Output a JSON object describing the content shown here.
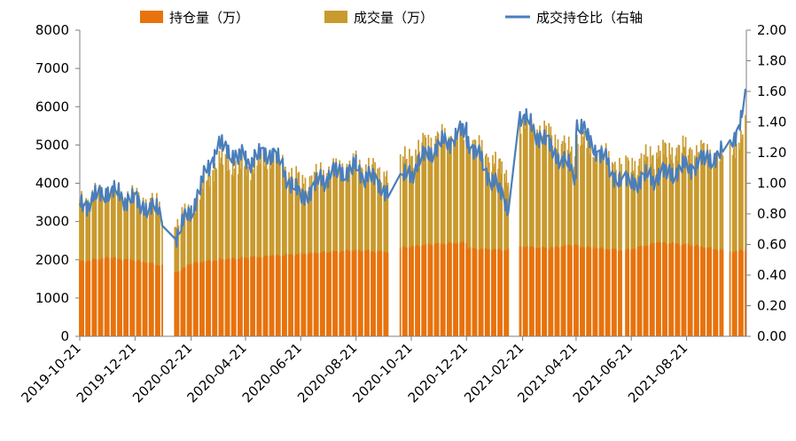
{
  "chart_data": {
    "type": "bar",
    "legend": {
      "position": "top",
      "items": [
        {
          "label": "持仓量（万）",
          "color": "#e8730d",
          "kind": "bar"
        },
        {
          "label": "成交量（万）",
          "color": "#c99a2e",
          "kind": "bar"
        },
        {
          "label": "成交持仓比（右轴",
          "color": "#4a7ebb",
          "kind": "line"
        }
      ]
    },
    "y_left": {
      "min": 0,
      "max": 8000,
      "ticks": [
        "0",
        "1000",
        "2000",
        "3000",
        "4000",
        "5000",
        "6000",
        "7000",
        "8000"
      ]
    },
    "y_right": {
      "min": 0,
      "max": 2,
      "ticks": [
        "0.00",
        "0.20",
        "0.40",
        "0.60",
        "0.80",
        "1.00",
        "1.20",
        "1.40",
        "1.60",
        "1.80",
        "2.00"
      ]
    },
    "x_ticks": [
      "2019-10-21",
      "2019-12-21",
      "2020-02-21",
      "2020-04-21",
      "2020-06-21",
      "2020-08-21",
      "2020-10-21",
      "2020-12-21",
      "2021-02-21",
      "2021-04-21",
      "2021-06-21",
      "2021-08-21"
    ],
    "segments": [
      {
        "start": "2019-10-21",
        "end": "2019-11-21",
        "oi": [
          1950,
          2050
        ],
        "vol": [
          3500,
          3800
        ],
        "ratio": [
          0.85,
          0.95
        ]
      },
      {
        "start": "2019-11-21",
        "end": "2019-12-21",
        "oi": [
          2050,
          1980
        ],
        "vol": [
          3800,
          3600
        ],
        "ratio": [
          0.95,
          0.88
        ]
      },
      {
        "start": "2019-12-21",
        "end": "2020-01-20",
        "oi": [
          1980,
          1850
        ],
        "vol": [
          3600,
          3350
        ],
        "ratio": [
          0.88,
          0.8
        ]
      },
      {
        "start": "2020-02-03",
        "end": "2020-02-21",
        "oi": [
          1650,
          1900
        ],
        "vol": [
          2900,
          3300
        ],
        "ratio": [
          0.65,
          0.82
        ]
      },
      {
        "start": "2020-02-21",
        "end": "2020-03-21",
        "oi": [
          1900,
          2000
        ],
        "vol": [
          3300,
          4600
        ],
        "ratio": [
          0.82,
          1.25
        ]
      },
      {
        "start": "2020-03-21",
        "end": "2020-04-21",
        "oi": [
          2000,
          2050
        ],
        "vol": [
          4600,
          4400
        ],
        "ratio": [
          1.25,
          1.15
        ]
      },
      {
        "start": "2020-04-21",
        "end": "2020-05-21",
        "oi": [
          2050,
          2100
        ],
        "vol": [
          4400,
          4700
        ],
        "ratio": [
          1.15,
          1.2
        ]
      },
      {
        "start": "2020-05-21",
        "end": "2020-06-21",
        "oi": [
          2100,
          2150
        ],
        "vol": [
          4700,
          4000
        ],
        "ratio": [
          1.2,
          0.9
        ]
      },
      {
        "start": "2020-06-21",
        "end": "2020-07-21",
        "oi": [
          2150,
          2200
        ],
        "vol": [
          4000,
          4300
        ],
        "ratio": [
          0.9,
          1.05
        ]
      },
      {
        "start": "2020-07-21",
        "end": "2020-08-21",
        "oi": [
          2200,
          2250
        ],
        "vol": [
          4300,
          4500
        ],
        "ratio": [
          1.05,
          1.1
        ]
      },
      {
        "start": "2020-08-21",
        "end": "2020-09-25",
        "oi": [
          2250,
          2200
        ],
        "vol": [
          4500,
          4200
        ],
        "ratio": [
          1.1,
          0.95
        ]
      },
      {
        "start": "2020-10-09",
        "end": "2020-11-09",
        "oi": [
          2300,
          2400
        ],
        "vol": [
          4500,
          5100
        ],
        "ratio": [
          1.0,
          1.2
        ]
      },
      {
        "start": "2020-11-09",
        "end": "2020-12-21",
        "oi": [
          2400,
          2450
        ],
        "vol": [
          5100,
          5300
        ],
        "ratio": [
          1.2,
          1.35
        ]
      },
      {
        "start": "2020-12-21",
        "end": "2021-02-05",
        "oi": [
          2300,
          2250
        ],
        "vol": [
          5200,
          4200
        ],
        "ratio": [
          1.3,
          0.85
        ]
      },
      {
        "start": "2021-02-18",
        "end": "2021-03-21",
        "oi": [
          2350,
          2300
        ],
        "vol": [
          5600,
          5300
        ],
        "ratio": [
          1.45,
          1.25
        ]
      },
      {
        "start": "2021-03-21",
        "end": "2021-04-21",
        "oi": [
          2300,
          2400
        ],
        "vol": [
          5300,
          4700
        ],
        "ratio": [
          1.25,
          1.05
        ]
      },
      {
        "start": "2021-04-21",
        "end": "2021-06-10",
        "oi": [
          2350,
          2250
        ],
        "vol": [
          5200,
          4400
        ],
        "ratio": [
          1.4,
          1.0
        ]
      },
      {
        "start": "2021-06-15",
        "end": "2021-07-21",
        "oi": [
          2250,
          2450
        ],
        "vol": [
          4400,
          4800
        ],
        "ratio": [
          1.0,
          1.05
        ]
      },
      {
        "start": "2021-07-21",
        "end": "2021-08-21",
        "oi": [
          2450,
          2400
        ],
        "vol": [
          4800,
          4900
        ],
        "ratio": [
          1.05,
          1.1
        ]
      },
      {
        "start": "2021-08-21",
        "end": "2021-09-30",
        "oi": [
          2400,
          2250
        ],
        "vol": [
          4900,
          4700
        ],
        "ratio": [
          1.1,
          1.2
        ]
      },
      {
        "start": "2021-10-08",
        "end": "2021-10-25",
        "oi": [
          2200,
          2250
        ],
        "vol": [
          4700,
          5500
        ],
        "ratio": [
          1.2,
          1.55
        ]
      }
    ]
  }
}
